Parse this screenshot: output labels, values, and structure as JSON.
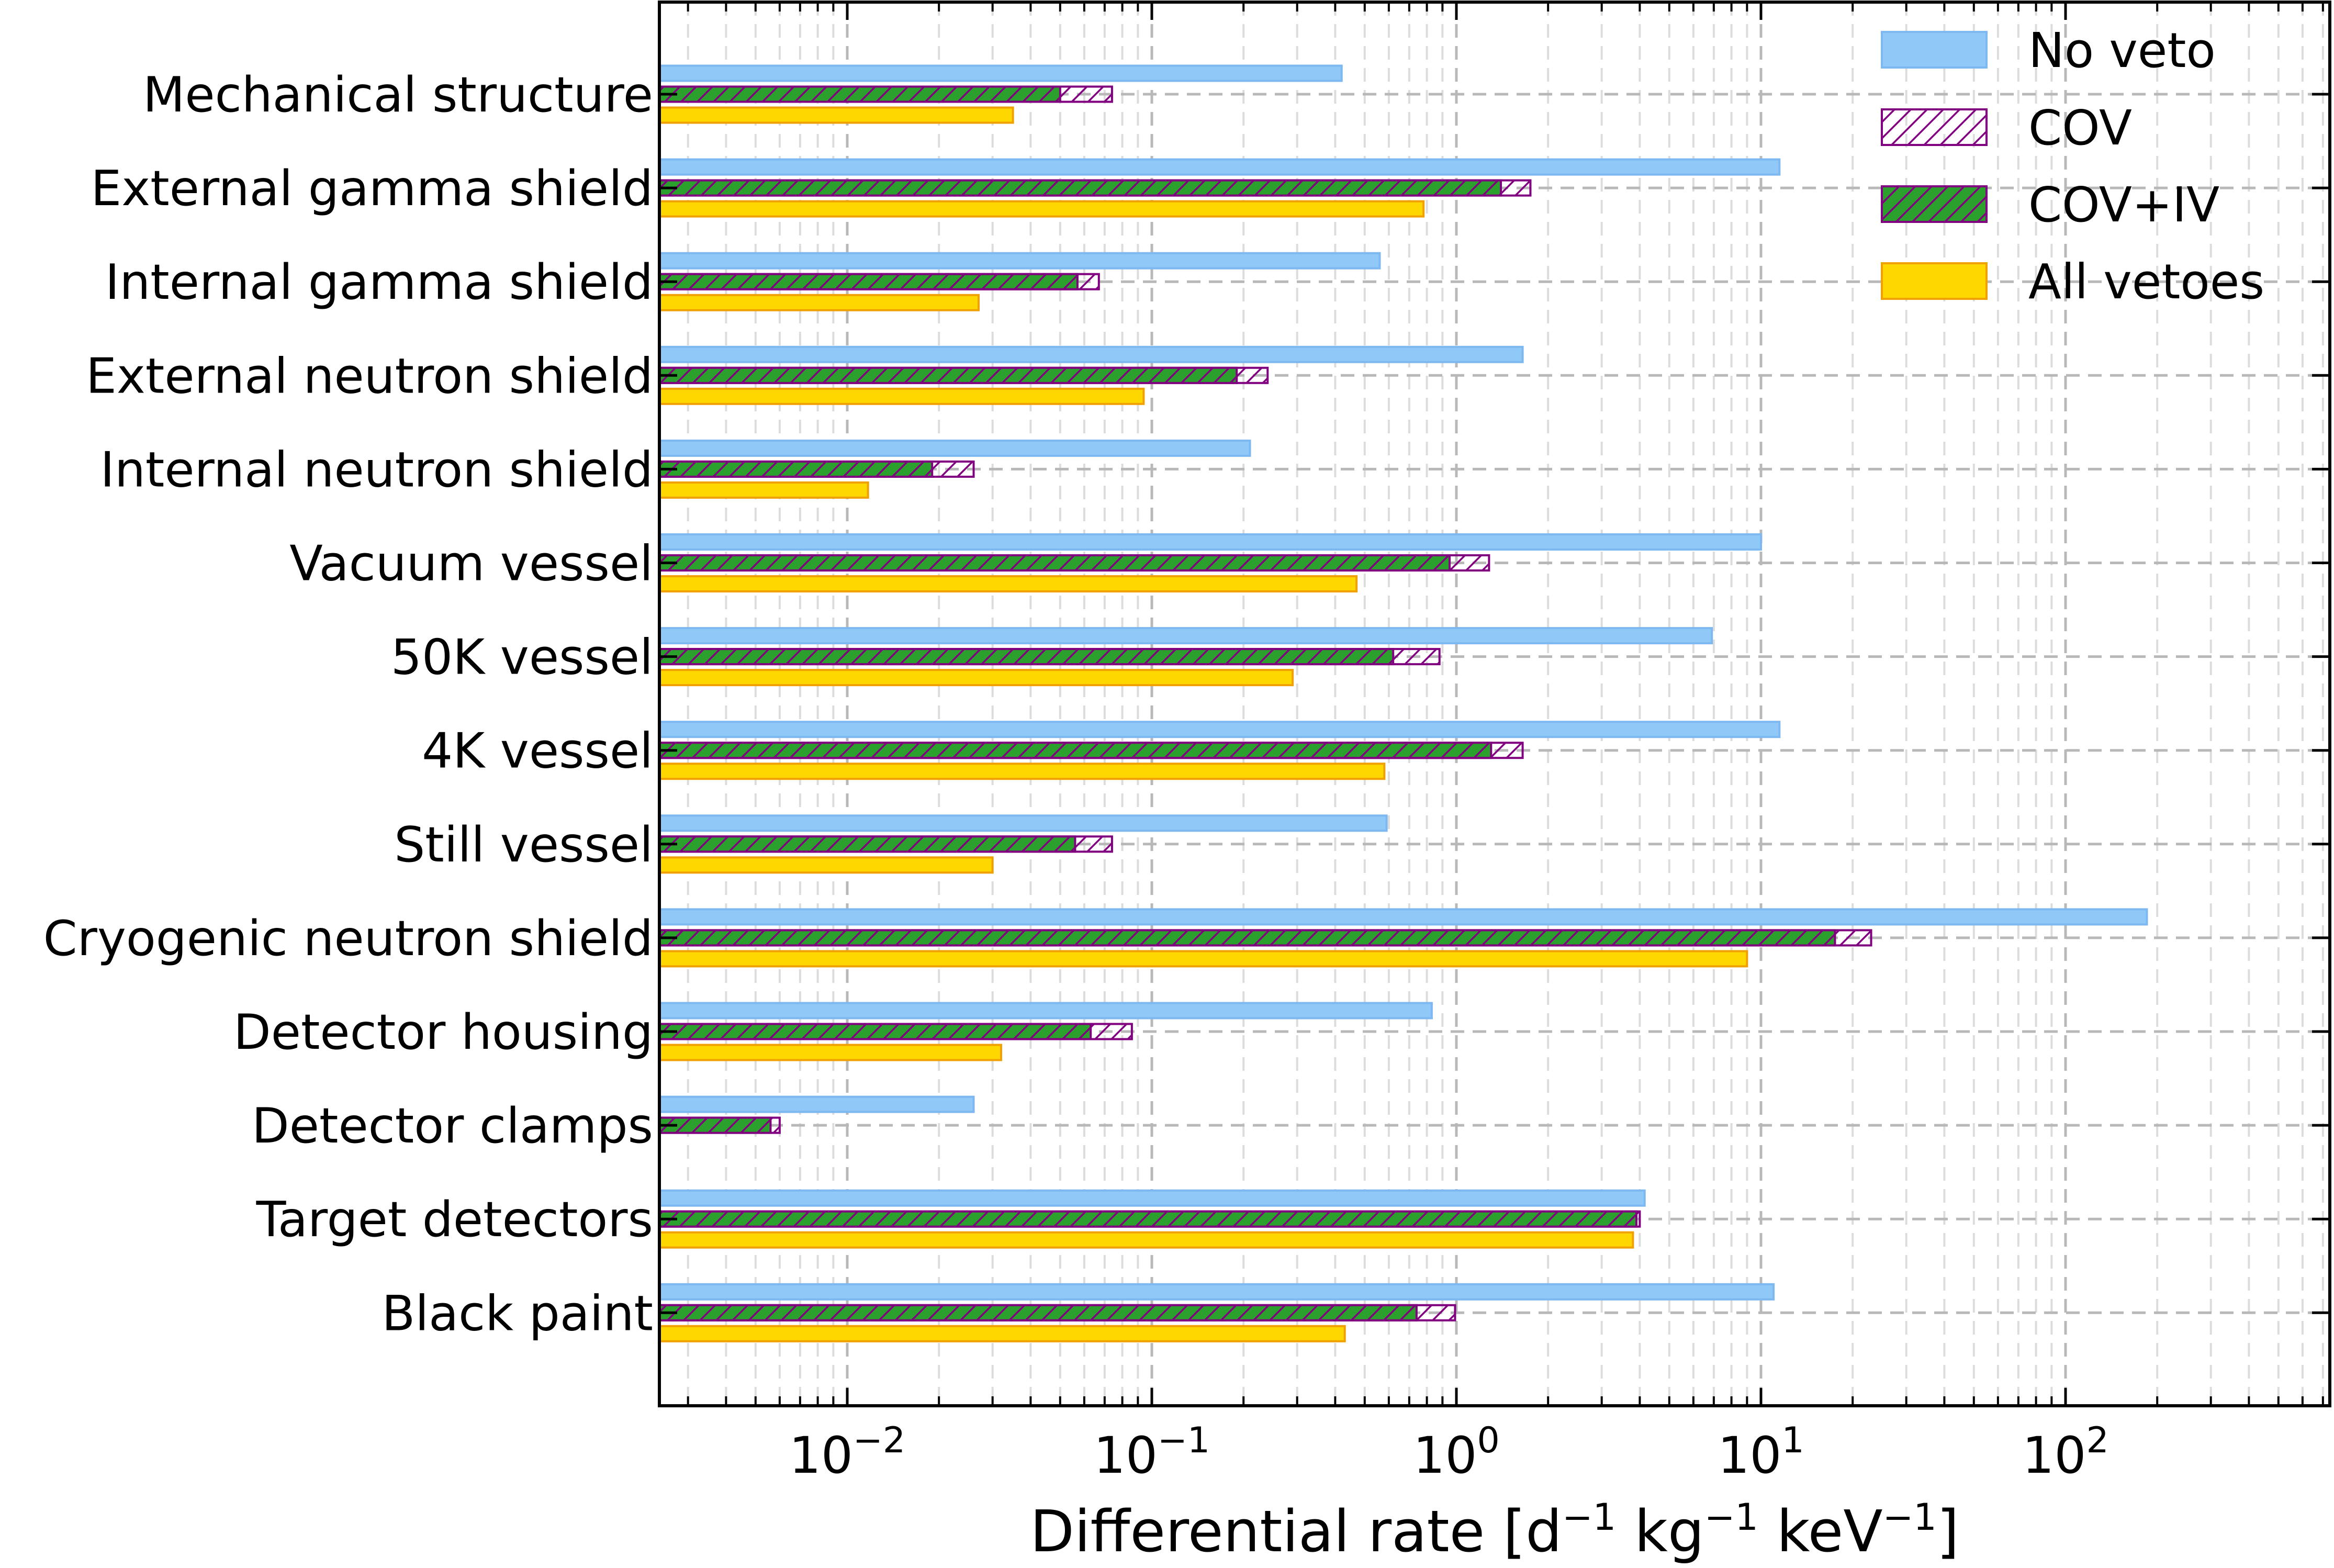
{
  "chart_data": {
    "type": "bar",
    "orientation": "horizontal",
    "xscale": "log",
    "xlim": [
      0.0025,
      800
    ],
    "xlabel": "Differential rate [d⁻¹ kg⁻¹ keV⁻¹]",
    "xlabel_parts": {
      "prefix": "Differential rate [d",
      "e1": "−1",
      "mid1": " kg",
      "e2": "−1",
      "mid2": " keV",
      "e3": "−1",
      "suffix": "]"
    },
    "xticks": [
      {
        "base": "10",
        "exp": "−2",
        "value": 0.01
      },
      {
        "base": "10",
        "exp": "−1",
        "value": 0.1
      },
      {
        "base": "10",
        "exp": "0",
        "value": 1
      },
      {
        "base": "10",
        "exp": "1",
        "value": 10
      },
      {
        "base": "10",
        "exp": "2",
        "value": 100
      }
    ],
    "grid": true,
    "legend_position": "top-right",
    "categories": [
      "Mechanical structure",
      "External gamma shield",
      "Internal gamma shield",
      "External neutron shield",
      "Internal neutron shield",
      "Vacuum vessel",
      "50K vessel",
      "4K vessel",
      "Still vessel",
      "Cryogenic neutron shield",
      "Detector housing",
      "Detector clamps",
      "Target detectors",
      "Black paint"
    ],
    "series": [
      {
        "name": "No veto",
        "color": "#90c8f8",
        "edge": "#7db8f0",
        "style": "solid",
        "values": [
          0.42,
          11.5,
          0.56,
          1.65,
          0.21,
          10.0,
          6.9,
          11.5,
          0.59,
          185,
          0.83,
          0.026,
          4.15,
          11.0
        ]
      },
      {
        "name": "COV",
        "color": "#ffffff",
        "edge": "#800080",
        "style": "hatch",
        "values": [
          0.074,
          1.75,
          0.067,
          0.24,
          0.026,
          1.28,
          0.88,
          1.65,
          0.074,
          23,
          0.086,
          0.006,
          4.0,
          0.99
        ]
      },
      {
        "name": "COV+IV",
        "color": "#2ca02c",
        "edge": "#800080",
        "style": "solid-hatch",
        "values": [
          0.05,
          1.4,
          0.057,
          0.19,
          0.019,
          0.95,
          0.62,
          1.3,
          0.056,
          17.5,
          0.063,
          0.0056,
          3.9,
          0.74
        ]
      },
      {
        "name": "All vetoes",
        "color": "#ffd700",
        "edge": "#f0a000",
        "style": "solid",
        "values": [
          0.035,
          0.78,
          0.027,
          0.094,
          0.0117,
          0.47,
          0.29,
          0.58,
          0.03,
          9.0,
          0.032,
          null,
          3.8,
          0.43
        ]
      }
    ]
  }
}
